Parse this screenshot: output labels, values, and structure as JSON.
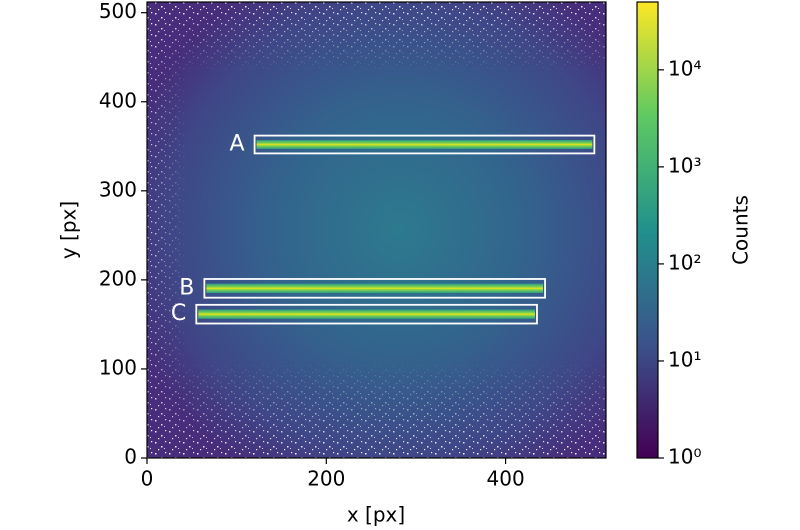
{
  "chart_data": {
    "type": "image",
    "xlabel": "x [px]",
    "ylabel": "y [px]",
    "xlim": [
      0,
      512
    ],
    "ylim": [
      0,
      512
    ],
    "xticks": [
      0,
      200,
      400
    ],
    "yticks": [
      0,
      100,
      200,
      300,
      400,
      500
    ],
    "colorbar": {
      "label": "Counts",
      "scale": "log",
      "colormap": "viridis",
      "lim": [
        1,
        50000
      ],
      "ticks": [
        {
          "value": 1,
          "label": "10⁰"
        },
        {
          "value": 10,
          "label": "10¹"
        },
        {
          "value": 100,
          "label": "10²"
        },
        {
          "value": 1000,
          "label": "10³"
        },
        {
          "value": 10000,
          "label": "10⁴"
        }
      ]
    },
    "regions": [
      {
        "label": "A",
        "x": [
          120,
          499
        ],
        "y": [
          342,
          362
        ]
      },
      {
        "label": "B",
        "x": [
          64,
          444
        ],
        "y": [
          180,
          201
        ]
      },
      {
        "label": "C",
        "x": [
          55,
          435
        ],
        "y": [
          151,
          172
        ]
      }
    ]
  }
}
